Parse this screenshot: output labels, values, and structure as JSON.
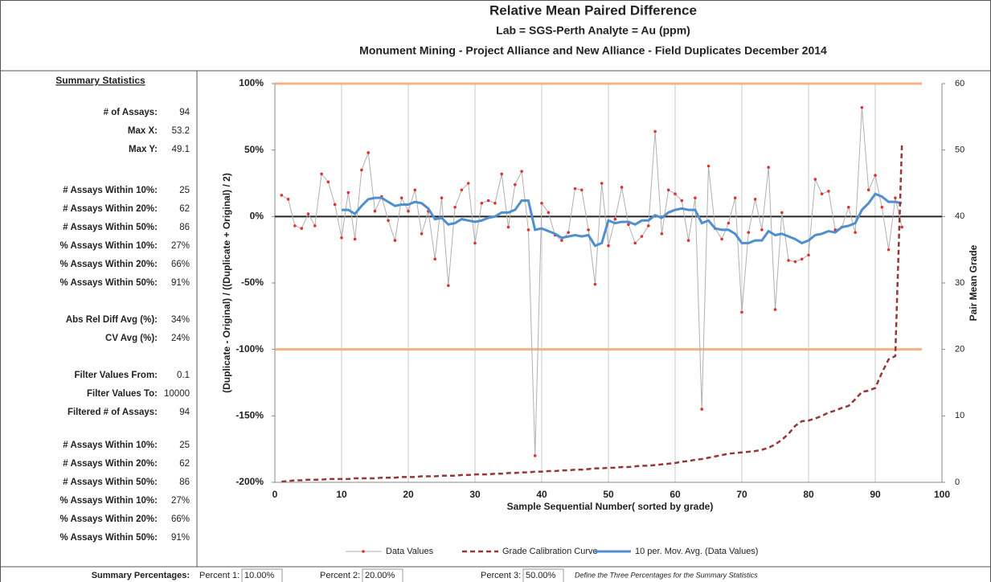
{
  "chart_data": {
    "type": "line",
    "title": "Relative Mean Paired Difference",
    "subtitles": [
      "Lab = SGS-Perth Analyte = Au (ppm)",
      "Monument Mining - Project Alliance and New Alliance - Field Duplicates December 2014"
    ],
    "xlabel": "Sample  Sequential Number( sorted by grade)",
    "ylabel": "(Duplicate - Original) / ((Duplicate + Original) / 2)",
    "y2label": "Pair Mean Grade",
    "xlim": [
      0,
      100
    ],
    "xticks": [
      0,
      10,
      20,
      30,
      40,
      50,
      60,
      70,
      80,
      90,
      100
    ],
    "ylim": [
      -200,
      100
    ],
    "yticks": [
      {
        "value": -200,
        "label": "-200%"
      },
      {
        "value": -150,
        "label": "-150%"
      },
      {
        "value": -100,
        "label": "-100%"
      },
      {
        "value": -50,
        "label": "-50%"
      },
      {
        "value": 0,
        "label": "0%"
      },
      {
        "value": 50,
        "label": "50%"
      },
      {
        "value": 100,
        "label": "100%"
      }
    ],
    "y2lim": [
      0,
      60
    ],
    "y2ticks": [
      0,
      10,
      20,
      30,
      40,
      50,
      60
    ],
    "grid": "x",
    "limit_lines": [
      100,
      -100
    ],
    "limit_color": "#f4b183",
    "x": [
      1,
      2,
      3,
      4,
      5,
      6,
      7,
      8,
      9,
      10,
      11,
      12,
      13,
      14,
      15,
      16,
      17,
      18,
      19,
      20,
      21,
      22,
      23,
      24,
      25,
      26,
      27,
      28,
      29,
      30,
      31,
      32,
      33,
      34,
      35,
      36,
      37,
      38,
      39,
      40,
      41,
      42,
      43,
      44,
      45,
      46,
      47,
      48,
      49,
      50,
      51,
      52,
      53,
      54,
      55,
      56,
      57,
      58,
      59,
      60,
      61,
      62,
      63,
      64,
      65,
      66,
      67,
      68,
      69,
      70,
      71,
      72,
      73,
      74,
      75,
      76,
      77,
      78,
      79,
      80,
      81,
      82,
      83,
      84,
      85,
      86,
      87,
      88,
      89,
      90,
      91,
      92,
      93,
      94
    ],
    "series": [
      {
        "name": "Data Values",
        "color": "#b0b0b0",
        "marker_color": "#e03030",
        "values": [
          16,
          13,
          -7,
          -9,
          2,
          -7,
          32,
          26,
          9,
          -16,
          18,
          -17,
          35,
          48,
          4,
          15,
          -3,
          -18,
          14,
          4,
          20,
          -13,
          4,
          -32,
          14,
          -52,
          7,
          20,
          25,
          -20,
          10,
          12,
          10,
          32,
          -8,
          24,
          34,
          -10,
          -180,
          10,
          3,
          -14,
          -18,
          -12,
          21,
          20,
          -10,
          -51,
          25,
          -22,
          -2,
          22,
          -6,
          -20,
          -15,
          -7,
          64,
          -13,
          20,
          17,
          12,
          -18,
          14,
          -145,
          38,
          -9,
          -17,
          -5,
          14,
          -72,
          -12,
          13,
          -10,
          37,
          -70,
          3,
          -33,
          -34,
          -32,
          -29,
          28,
          17,
          19,
          -10,
          -8,
          7,
          -12,
          82,
          20,
          31,
          7,
          -25,
          14,
          -8
        ]
      },
      {
        "name": "Grade Calibration Curve",
        "color": "#953735",
        "axis": "y2",
        "dashed": true,
        "values": [
          0.1,
          0.2,
          0.3,
          0.3,
          0.4,
          0.4,
          0.4,
          0.5,
          0.5,
          0.5,
          0.5,
          0.6,
          0.6,
          0.6,
          0.6,
          0.7,
          0.7,
          0.7,
          0.8,
          0.8,
          0.8,
          0.9,
          0.9,
          0.9,
          1.0,
          1.0,
          1.0,
          1.1,
          1.1,
          1.2,
          1.2,
          1.2,
          1.3,
          1.3,
          1.4,
          1.4,
          1.5,
          1.5,
          1.6,
          1.6,
          1.7,
          1.7,
          1.8,
          1.8,
          1.9,
          1.9,
          2.0,
          2.1,
          2.1,
          2.2,
          2.2,
          2.3,
          2.3,
          2.4,
          2.5,
          2.5,
          2.6,
          2.7,
          2.8,
          2.9,
          3.1,
          3.2,
          3.4,
          3.5,
          3.7,
          3.9,
          4.1,
          4.3,
          4.4,
          4.5,
          4.6,
          4.7,
          4.9,
          5.2,
          5.7,
          6.4,
          7.3,
          8.5,
          9.2,
          9.3,
          9.6,
          10.0,
          10.5,
          10.8,
          11.2,
          11.5,
          12.5,
          13.6,
          13.8,
          14.2,
          16.5,
          18.5,
          19.0,
          51.0
        ]
      },
      {
        "name": "10 per. Mov. Avg. (Data Values)",
        "color": "#4f8fcf",
        "values": [
          null,
          null,
          null,
          null,
          null,
          null,
          null,
          null,
          null,
          5,
          5,
          2,
          8,
          13,
          14,
          14,
          11,
          8,
          9,
          9,
          11,
          10,
          6,
          -2,
          -1,
          -6,
          -5,
          -2,
          -3,
          -4,
          -3,
          -1,
          0,
          3,
          3,
          5,
          12,
          12,
          -10,
          -9,
          -11,
          -13,
          -16,
          -15,
          -14,
          -15,
          -14,
          -22,
          -20,
          -3,
          -5,
          -4,
          -4,
          -6,
          -3,
          -3,
          1,
          -1,
          3,
          5,
          6,
          5,
          5,
          -5,
          -3,
          -9,
          -10,
          -10,
          -13,
          -20,
          -20,
          -18,
          -18,
          -11,
          -14,
          -13,
          -15,
          -17,
          -20,
          -18,
          -14,
          -13,
          -11,
          -12,
          -8,
          -7,
          -5,
          5,
          10,
          17,
          15,
          11,
          11,
          10
        ]
      }
    ]
  },
  "summary": {
    "title": "Summary Statistics",
    "groups": [
      {
        "rows": [
          {
            "label": "# of Assays:",
            "value": "94"
          },
          {
            "label": "Max X:",
            "value": "53.2"
          },
          {
            "label": "Max Y:",
            "value": "49.1"
          }
        ]
      },
      {
        "rows": [
          {
            "label": "# Assays Within 10%:",
            "value": "25"
          },
          {
            "label": "# Assays Within 20%:",
            "value": "62"
          },
          {
            "label": "# Assays Within 50%:",
            "value": "86"
          },
          {
            "label": "% Assays Within 10%:",
            "value": "27%"
          },
          {
            "label": "% Assays Within 20%:",
            "value": "66%"
          },
          {
            "label": "% Assays Within 50%:",
            "value": "91%"
          }
        ]
      },
      {
        "rows": [
          {
            "label": "Abs Rel Diff Avg (%):",
            "value": "34%"
          },
          {
            "label": "CV Avg (%):",
            "value": "24%"
          }
        ]
      },
      {
        "rows": [
          {
            "label": "Filter Values From:",
            "value": "0.1"
          },
          {
            "label": "Filter Values To:",
            "value": "10000"
          },
          {
            "label": "Filtered # of Assays:",
            "value": "94"
          }
        ]
      },
      {
        "rows": [
          {
            "label": "# Assays Within 10%:",
            "value": "25"
          },
          {
            "label": "# Assays Within 20%:",
            "value": "62"
          },
          {
            "label": "# Assays Within 50%:",
            "value": "86"
          },
          {
            "label": "% Assays Within 10%:",
            "value": "27%"
          },
          {
            "label": "% Assays Within 20%:",
            "value": "66%"
          },
          {
            "label": "% Assays Within 50%:",
            "value": "91%"
          }
        ]
      }
    ]
  },
  "footer": {
    "label": "Summary Percentages:",
    "fields": [
      {
        "label": "Percent 1:",
        "value": "10.00%"
      },
      {
        "label": "Percent 2:",
        "value": "20.00%"
      },
      {
        "label": "Percent 3:",
        "value": "50.00%"
      }
    ],
    "note": "Define the Three Percentages for the Summary Statistics"
  }
}
